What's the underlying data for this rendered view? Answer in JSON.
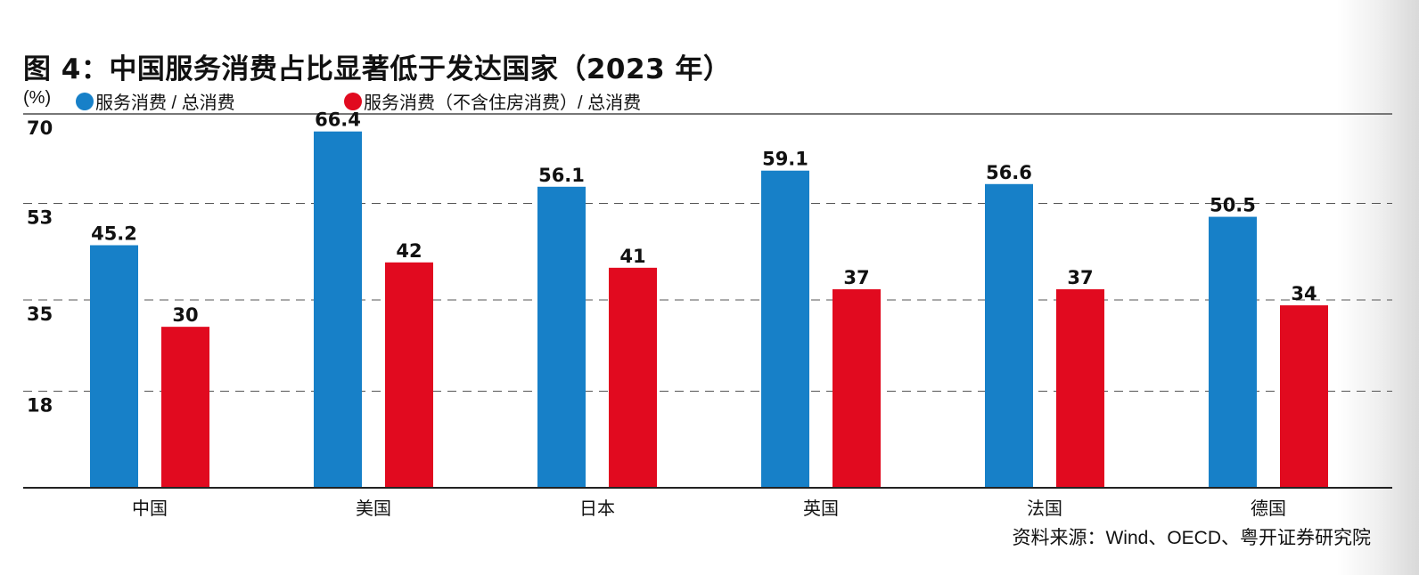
{
  "chart_data": {
    "type": "bar",
    "title": "图 4：中国服务消费占比显著低于发达国家（2023 年）",
    "ylabel": "(%)",
    "xlabel": "",
    "ylim": [
      0,
      70
    ],
    "yticks": [
      70,
      53,
      35,
      18
    ],
    "grid": true,
    "legend_placement": "top-left",
    "categories": [
      "中国",
      "美国",
      "日本",
      "英国",
      "法国",
      "德国"
    ],
    "series": [
      {
        "name": "服务消费 / 总消费",
        "color": "#1780c8",
        "values": [
          45.2,
          66.4,
          56.1,
          59.1,
          56.6,
          50.5
        ],
        "labels": [
          "45.2",
          "66.4",
          "56.1",
          "59.1",
          "56.6",
          "50.5"
        ]
      },
      {
        "name": "服务消费（不含住房消费）/ 总消费",
        "color": "#e10a1f",
        "values": [
          30,
          42,
          41,
          37,
          37,
          34
        ],
        "labels": [
          "30",
          "42",
          "41",
          "37",
          "37",
          "34"
        ]
      }
    ],
    "source": "资料来源：Wind、OECD、粤开证券研究院"
  }
}
